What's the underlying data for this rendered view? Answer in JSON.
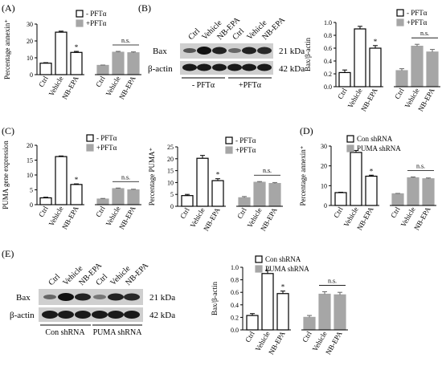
{
  "chart_data": [
    {
      "panel": "(A)",
      "type": "bar",
      "ylabel": "Percentage  annexin⁺",
      "ylim": [
        0,
        30
      ],
      "yticks": [
        0,
        10,
        20,
        30
      ],
      "categories": [
        "Ctrl",
        "Vehicle",
        "NB-EPA",
        "Ctrl",
        "Vehicle",
        "NB-EPA"
      ],
      "values": [
        6.8,
        25.2,
        13.2,
        5.5,
        13.3,
        13.0
      ],
      "errors": [
        0.3,
        0.6,
        0.6,
        0.2,
        0.5,
        0.5
      ],
      "groups": [
        "- PFTα",
        "- PFTα",
        "- PFTα",
        "+PFTα",
        "+PFTα",
        "+PFTα"
      ],
      "legend": [
        "- PFTα",
        "+PFTα"
      ],
      "legend_placement": "top-right",
      "annotations": {
        "star": "*",
        "ns": "n.s."
      }
    },
    {
      "panel": "(B)",
      "type": "bar",
      "ylabel": "Bax/β-actin",
      "ylim": [
        0,
        1.0
      ],
      "yticks": [
        0.0,
        0.2,
        0.4,
        0.6,
        0.8,
        1.0
      ],
      "categories": [
        "Ctrl",
        "Vehicle",
        "NB-EPA",
        "Ctrl",
        "Vehicle",
        "NB-EPA"
      ],
      "values": [
        0.22,
        0.9,
        0.6,
        0.25,
        0.63,
        0.54
      ],
      "errors": [
        0.04,
        0.04,
        0.04,
        0.03,
        0.03,
        0.04
      ],
      "groups": [
        "- PFTα",
        "- PFTα",
        "- PFTα",
        "+PFTα",
        "+PFTα",
        "+PFTα"
      ],
      "legend": [
        "- PFTα",
        "+PFTα"
      ],
      "legend_placement": "top-right",
      "annotations": {
        "star": "*",
        "ns": "n.s."
      }
    },
    {
      "panel": "(C)",
      "type": "bar",
      "ylabel": "PUMA gene expression",
      "ylim": [
        0,
        20
      ],
      "yticks": [
        0,
        5,
        10,
        15,
        20
      ],
      "categories": [
        "Ctrl",
        "Vehicle",
        "NB-EPA",
        "Ctrl",
        "Vehicle",
        "NB-EPA"
      ],
      "values": [
        2.3,
        16.2,
        6.8,
        1.9,
        5.4,
        5.0
      ],
      "errors": [
        0.2,
        0.2,
        0.2,
        0.2,
        0.2,
        0.2
      ],
      "groups": [
        "- PFTα",
        "- PFTα",
        "- PFTα",
        "+PFTα",
        "+PFTα",
        "+PFTα"
      ],
      "legend": [
        "- PFTα",
        "+PFTα"
      ],
      "legend_placement": "top-right",
      "annotations": {
        "star": "*",
        "ns": "n.s."
      }
    },
    {
      "panel": "",
      "type": "bar",
      "ylabel": "Percentage PUMA⁺",
      "ylim": [
        0,
        25
      ],
      "yticks": [
        0,
        5,
        10,
        15,
        20,
        25
      ],
      "categories": [
        "Ctrl",
        "Vehicle",
        "NB-EPA",
        "Ctrl",
        "Vehicle",
        "NB-EPA"
      ],
      "values": [
        4.5,
        20.2,
        10.8,
        3.6,
        10.1,
        9.6
      ],
      "errors": [
        0.5,
        1.2,
        0.8,
        0.5,
        0.3,
        0.4
      ],
      "groups": [
        "- PFTα",
        "- PFTα",
        "- PFTα",
        "+PFTα",
        "+PFTα",
        "+PFTα"
      ],
      "legend": [
        "- PFTα",
        "+PFTα"
      ],
      "legend_placement": "top-right",
      "annotations": {
        "star": "*",
        "ns": "n.s."
      }
    },
    {
      "panel": "(D)",
      "type": "bar",
      "ylabel": "Percentage  annexin⁺",
      "ylim": [
        0,
        30
      ],
      "yticks": [
        0,
        10,
        20,
        30
      ],
      "categories": [
        "Ctrl",
        "Vehicle",
        "NB-EPA",
        "Ctrl",
        "Vehicle",
        "NB-EPA"
      ],
      "values": [
        6.5,
        26.8,
        14.8,
        5.9,
        14.0,
        13.5
      ],
      "errors": [
        0.2,
        1.0,
        0.5,
        0.2,
        0.4,
        0.4
      ],
      "groups": [
        "Con shRNA",
        "Con shRNA",
        "Con shRNA",
        "PUMA shRNA",
        "PUMA shRNA",
        "PUMA shRNA"
      ],
      "legend": [
        "Con shRNA",
        "PUMA shRNA"
      ],
      "legend_placement": "top-right",
      "annotations": {
        "star": "*",
        "ns": "n.s."
      }
    },
    {
      "panel": "",
      "type": "bar",
      "ylabel": "Bax/β-actin",
      "ylim": [
        0,
        1.0
      ],
      "yticks": [
        0.0,
        0.2,
        0.4,
        0.6,
        0.8,
        1.0
      ],
      "categories": [
        "Ctrl",
        "Vehicle",
        "NB-EPA",
        "Ctrl",
        "Vehicle",
        "NB-EPA"
      ],
      "values": [
        0.23,
        0.9,
        0.58,
        0.2,
        0.57,
        0.56
      ],
      "errors": [
        0.03,
        0.05,
        0.04,
        0.03,
        0.04,
        0.04
      ],
      "groups": [
        "Con shRNA",
        "Con shRNA",
        "Con shRNA",
        "PUMA shRNA",
        "PUMA shRNA",
        "PUMA shRNA"
      ],
      "legend": [
        "Con shRNA",
        "PUMA shRNA"
      ],
      "legend_placement": "top-right",
      "annotations": {
        "star": "*",
        "ns": "n.s."
      }
    }
  ],
  "panel_labels": {
    "b": "(B)",
    "e": "(E)"
  },
  "blots": {
    "b": {
      "lanes": [
        "Ctrl",
        "Vehicle",
        "NB-EPA",
        "Ctrl",
        "Vehicle",
        "NB-EPA"
      ],
      "rows": [
        {
          "name": "Bax",
          "size": "21 kDa"
        },
        {
          "name": "β-actin",
          "size": "42 kDa"
        }
      ],
      "groups": [
        "- PFTα",
        "+PFTα"
      ]
    },
    "e": {
      "lanes": [
        "Ctrl",
        "Vehicle",
        "NB-EPA",
        "Ctrl",
        "Vehicle",
        "NB-EPA"
      ],
      "rows": [
        {
          "name": "Bax",
          "size": "21 kDa"
        },
        {
          "name": "β-actin",
          "size": "42 kDa"
        }
      ],
      "groups": [
        "Con shRNA",
        "PUMA shRNA"
      ]
    }
  },
  "colors": {
    "open_bar": "#ffffff",
    "filled_bar": "#a6a6a6",
    "axis": "#000000"
  }
}
